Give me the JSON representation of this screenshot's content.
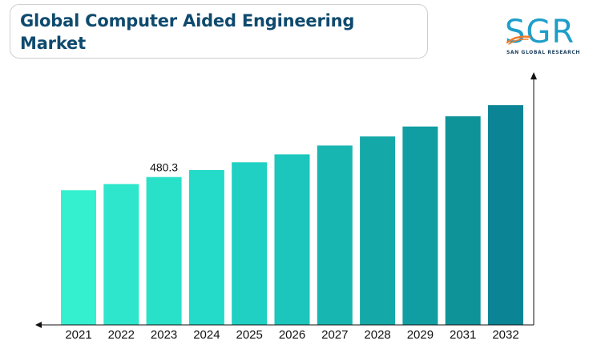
{
  "header": {
    "title_line1": "Global Computer Aided Engineering",
    "title_line2": "Market"
  },
  "logo": {
    "letters": "SGR",
    "subtitle": "SAN GLOBAL RESEARCH",
    "letter_color": "#1d9ec9",
    "swoosh_color": "#f07a2a"
  },
  "chart_data": {
    "type": "bar",
    "categories": [
      "2021",
      "2022",
      "2023",
      "2024",
      "2025",
      "2026",
      "2027",
      "2028",
      "2029",
      "2031",
      "2032"
    ],
    "values": [
      437.3,
      457.7,
      480.3,
      502.9,
      528.2,
      554.1,
      582.6,
      612.2,
      644.4,
      677.9,
      713.8
    ],
    "data_labels": [
      {
        "category": "2023",
        "text": "480.3"
      }
    ],
    "title": "Global Computer Aided Engineering Market",
    "xlabel": "",
    "ylabel": "",
    "ylim": [
      0,
      800
    ],
    "grid": false,
    "legend": "none",
    "colors": [
      "#34f0cf",
      "#2ee6cb",
      "#29e0c9",
      "#24dac8",
      "#1fd0c3",
      "#1cc6bd",
      "#18b6b1",
      "#14a8a8",
      "#119ea3",
      "#0e9399",
      "#0b8596"
    ]
  }
}
